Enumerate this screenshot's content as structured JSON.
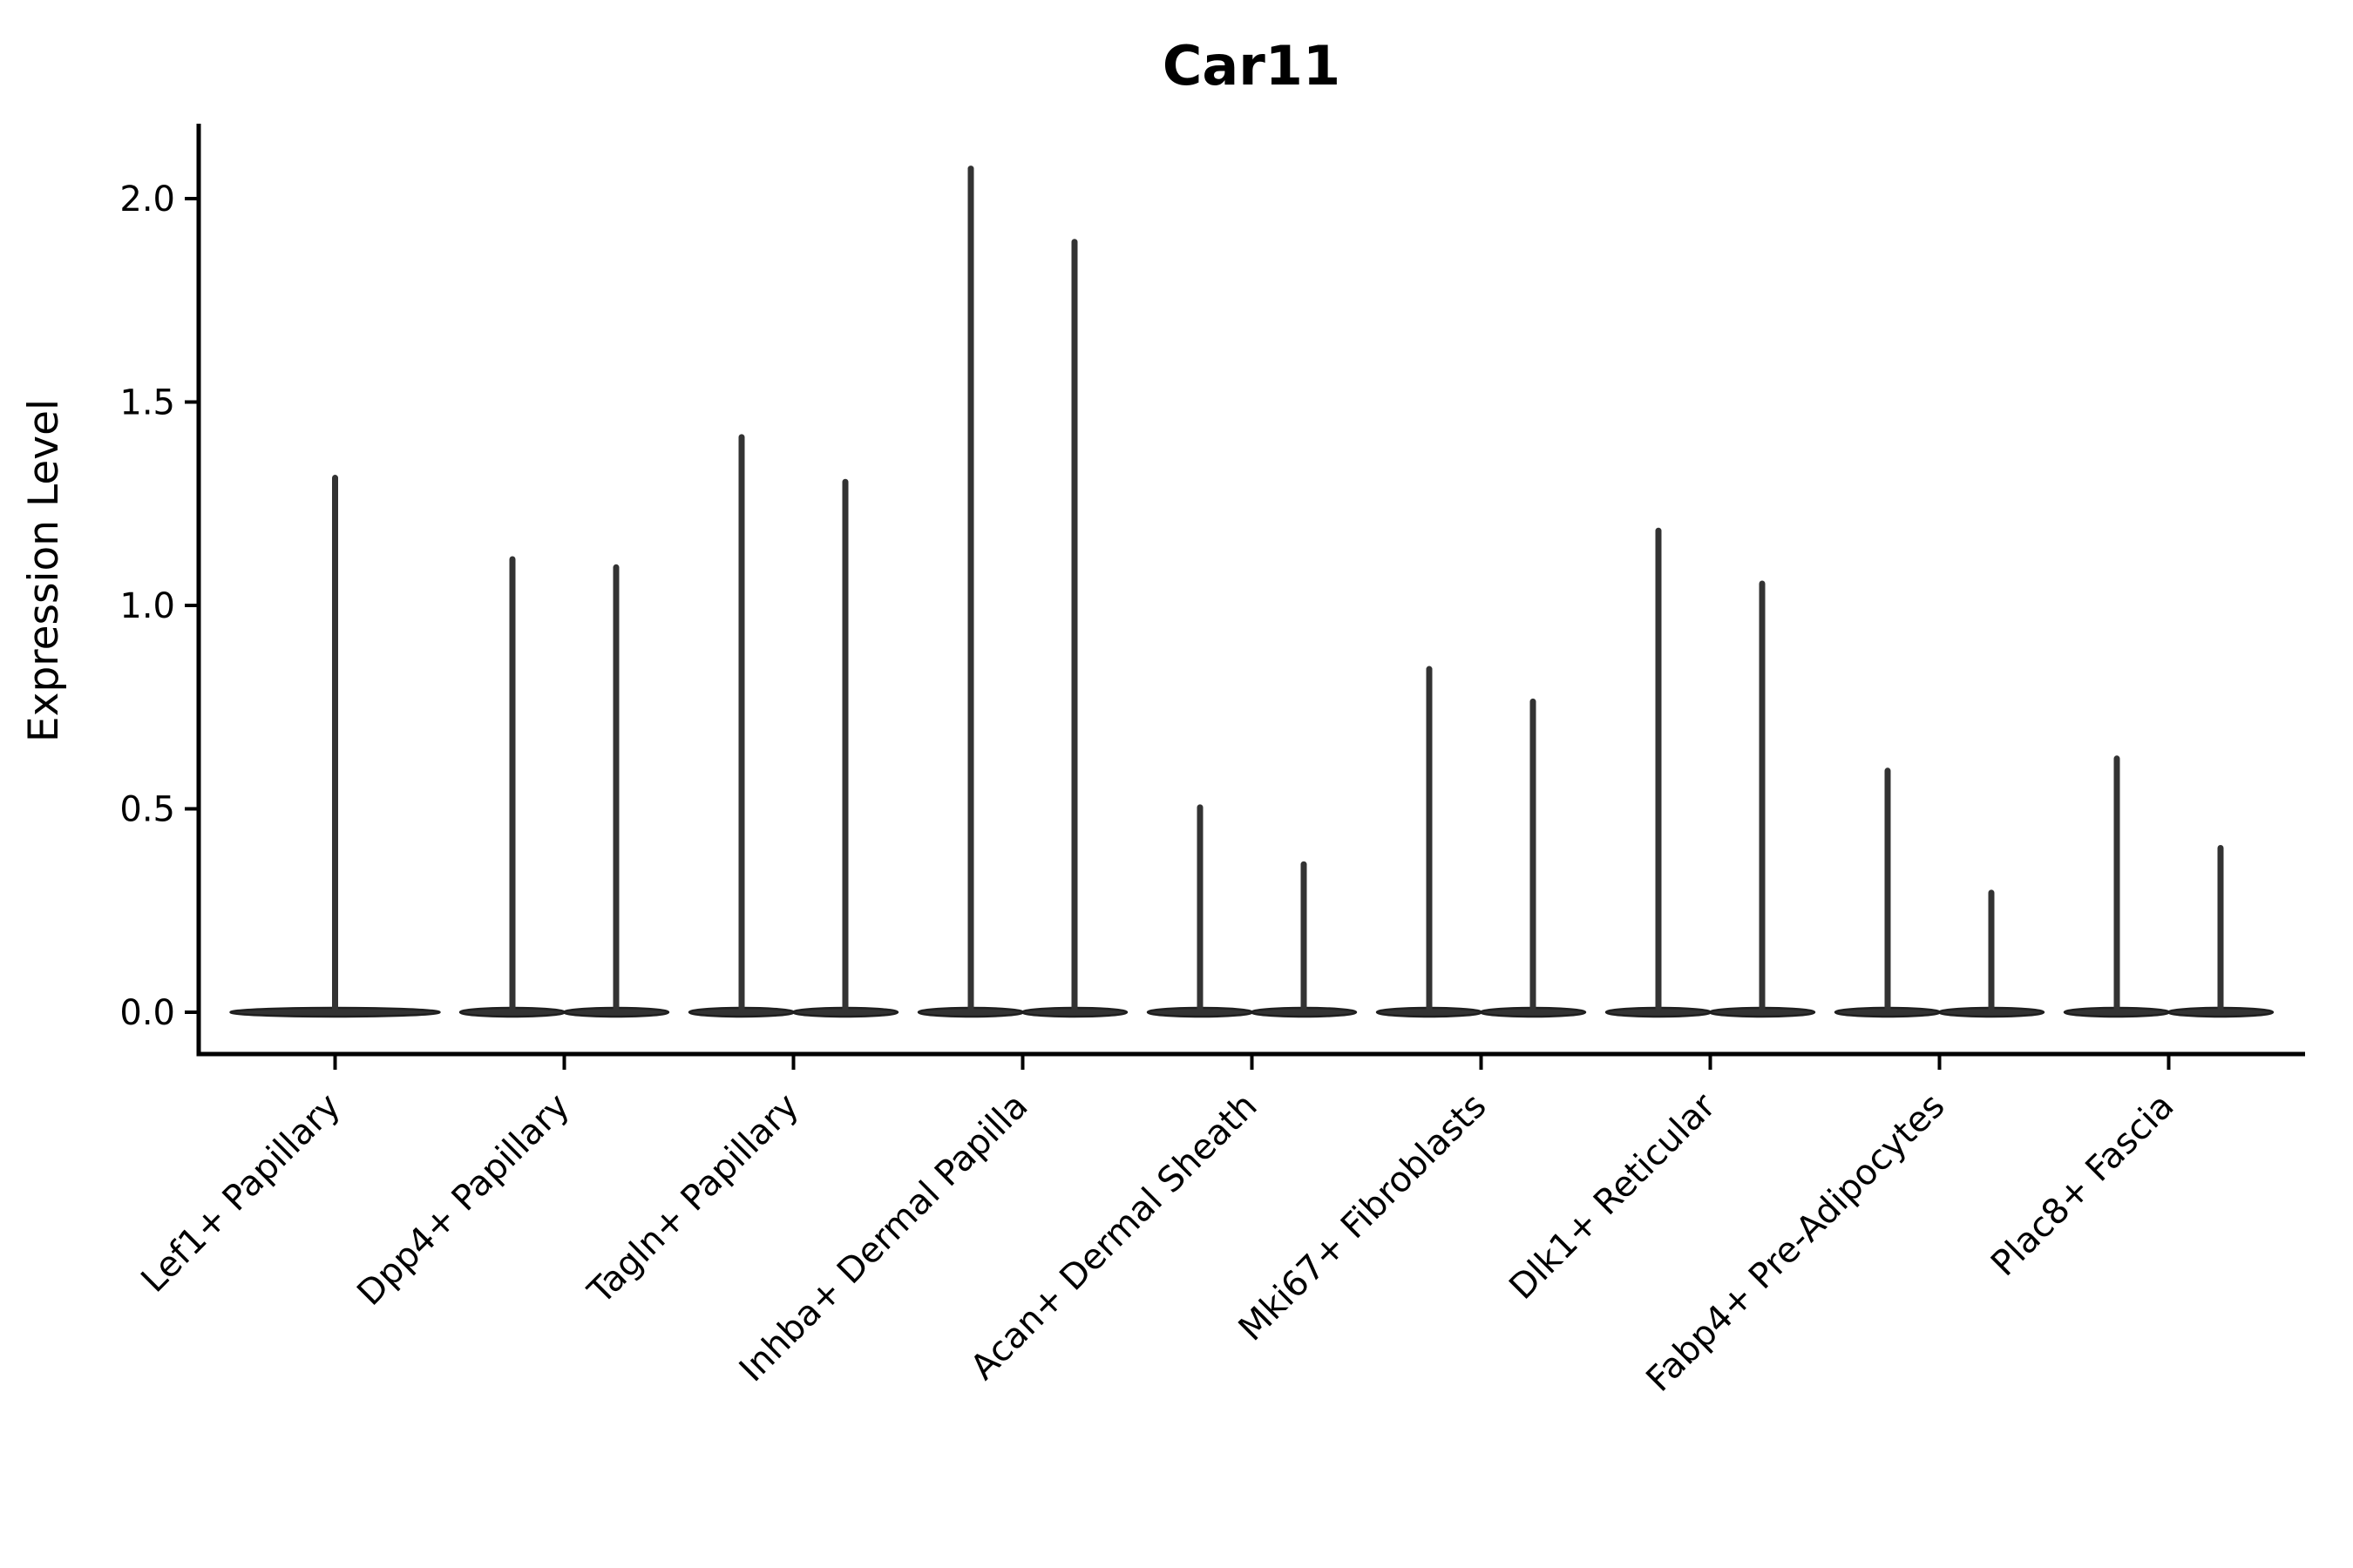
{
  "figure": {
    "background": "#ffffff"
  },
  "chart_data": {
    "type": "violin",
    "title": "Car11",
    "xlabel": "",
    "ylabel": "Expression Level",
    "grid": false,
    "legend": null,
    "ylim": [
      -0.1,
      2.18
    ],
    "yticks": [
      0.0,
      0.5,
      1.0,
      1.5,
      2.0
    ],
    "ytick_labels": [
      "0.0",
      "0.5",
      "1.0",
      "1.5",
      "2.0"
    ],
    "x_tick_rotation": 45,
    "categories": [
      "Lef1+ Papillary",
      "Dpp4+ Papillary",
      "Tagln+ Papillary",
      "Inhba+ Dermal Papilla",
      "Acan+ Dermal Sheath",
      "Mki67+ Fibroblasts",
      "Dlk1+ Reticular",
      "Fabp4+ Pre-Adipocytes",
      "Plac8+ Fascia"
    ],
    "violin_description": "Each violin is collapsed at expression 0 (wide flat base) with a thin spike up to the maximum expression value; first category shows a single centered violin, all others show two violins side by side.",
    "values_per_category": [
      [
        1.32
      ],
      [
        1.12,
        1.1
      ],
      [
        1.42,
        1.31
      ],
      [
        2.08,
        1.9
      ],
      [
        0.51,
        0.37
      ],
      [
        0.85,
        0.77
      ],
      [
        1.19,
        1.06
      ],
      [
        0.6,
        0.3
      ],
      [
        0.63,
        0.41
      ]
    ],
    "baseline_value": 0.0
  },
  "colors": {
    "background": "#ffffff",
    "axis": "#000000",
    "text": "#000000",
    "violin_fill": "#333333",
    "violin_edge": "#1f1f1f"
  }
}
